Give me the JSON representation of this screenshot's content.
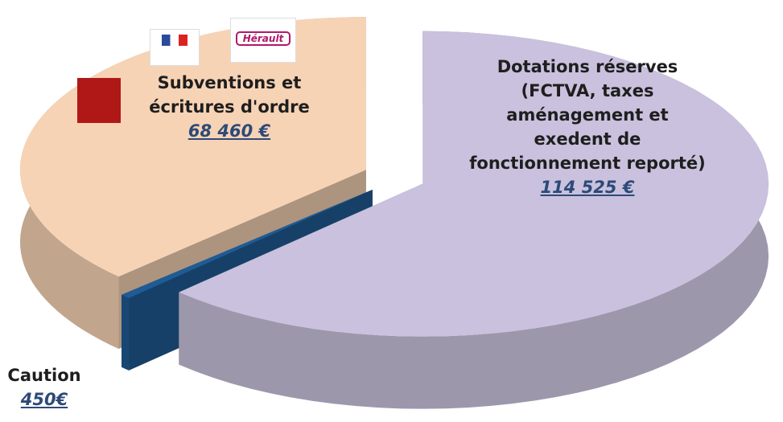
{
  "chart_data": {
    "type": "pie",
    "categories": [
      "Dotations réserves (FCTVA, taxes aménagement et exedent de fonctionnement reporté)",
      "Caution",
      "Subventions et écritures d'ordre"
    ],
    "values": [
      114525,
      450,
      68460
    ],
    "value_labels": [
      "114 525 €",
      "450€",
      "68 460 €"
    ],
    "colors": [
      "#c9c1dd",
      "#1f5b95",
      "#f7d3b5"
    ],
    "logos": [
      "Hérault"
    ]
  }
}
